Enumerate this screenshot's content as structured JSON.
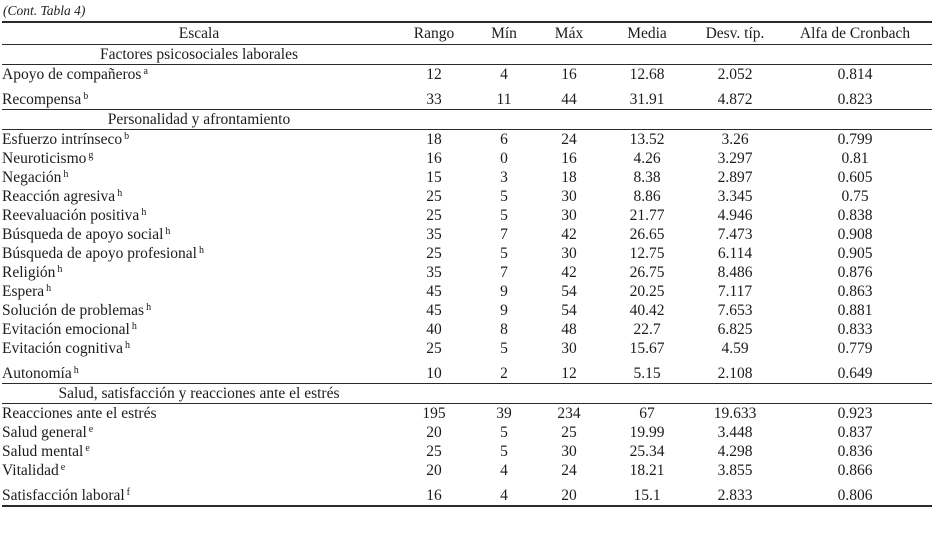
{
  "page": {
    "continuation_note": "(Cont. Tabla 4)"
  },
  "table": {
    "columns": [
      "Escala",
      "Rango",
      "Mín",
      "Máx",
      "Media",
      "Desv. típ.",
      "Alfa de Cronbach"
    ],
    "sections": [
      {
        "title": "Factores psicosociales laborales",
        "rows": [
          {
            "label": "Apoyo de compañeros",
            "sup": "a",
            "values": [
              "12",
              "4",
              "16",
              "12.68",
              "2.052",
              "0.814"
            ]
          },
          {
            "label": "Recompensa",
            "sup": "b",
            "values": [
              "33",
              "11",
              "44",
              "31.91",
              "4.872",
              "0.823"
            ]
          }
        ]
      },
      {
        "title": "Personalidad y afrontamiento",
        "rows": [
          {
            "label": "Esfuerzo intrínseco",
            "sup": "b",
            "values": [
              "18",
              "6",
              "24",
              "13.52",
              "3.26",
              "0.799"
            ]
          },
          {
            "label": "Neuroticismo",
            "sup": "g",
            "values": [
              "16",
              "0",
              "16",
              "4.26",
              "3.297",
              "0.81"
            ]
          },
          {
            "label": "Negación",
            "sup": "h",
            "values": [
              "15",
              "3",
              "18",
              "8.38",
              "2.897",
              "0.605"
            ]
          },
          {
            "label": "Reacción agresiva",
            "sup": "h",
            "values": [
              "25",
              "5",
              "30",
              "8.86",
              "3.345",
              "0.75"
            ]
          },
          {
            "label": "Reevaluación positiva",
            "sup": "h",
            "values": [
              "25",
              "5",
              "30",
              "21.77",
              "4.946",
              "0.838"
            ]
          },
          {
            "label": "Búsqueda de apoyo social",
            "sup": "h",
            "values": [
              "35",
              "7",
              "42",
              "26.65",
              "7.473",
              "0.908"
            ]
          },
          {
            "label": "Búsqueda de apoyo profesional",
            "sup": "h",
            "values": [
              "25",
              "5",
              "30",
              "12.75",
              "6.114",
              "0.905"
            ]
          },
          {
            "label": "Religión",
            "sup": "h",
            "values": [
              "35",
              "7",
              "42",
              "26.75",
              "8.486",
              "0.876"
            ]
          },
          {
            "label": "Espera",
            "sup": "h",
            "values": [
              "45",
              "9",
              "54",
              "20.25",
              "7.117",
              "0.863"
            ]
          },
          {
            "label": "Solución de problemas",
            "sup": "h",
            "values": [
              "45",
              "9",
              "54",
              "40.42",
              "7.653",
              "0.881"
            ]
          },
          {
            "label": "Evitación emocional",
            "sup": "h",
            "values": [
              "40",
              "8",
              "48",
              "22.7",
              "6.825",
              "0.833"
            ]
          },
          {
            "label": "Evitación cognitiva",
            "sup": "h",
            "values": [
              "25",
              "5",
              "30",
              "15.67",
              "4.59",
              "0.779"
            ]
          },
          {
            "label": "Autonomía",
            "sup": "h",
            "values": [
              "10",
              "2",
              "12",
              "5.15",
              "2.108",
              "0.649"
            ]
          }
        ]
      },
      {
        "title": "Salud, satisfacción y reacciones ante el estrés",
        "rows": [
          {
            "label": "Reacciones ante el estrés",
            "sup": "",
            "values": [
              "195",
              "39",
              "234",
              "67",
              "19.633",
              "0.923"
            ]
          },
          {
            "label": "Salud general",
            "sup": "e",
            "values": [
              "20",
              "5",
              "25",
              "19.99",
              "3.448",
              "0.837"
            ]
          },
          {
            "label": "Salud mental",
            "sup": "e",
            "values": [
              "25",
              "5",
              "30",
              "25.34",
              "4.298",
              "0.836"
            ]
          },
          {
            "label": "Vitalidad",
            "sup": "e",
            "values": [
              "20",
              "4",
              "24",
              "18.21",
              "3.855",
              "0.866"
            ]
          },
          {
            "label": "Satisfacción laboral",
            "sup": "f",
            "values": [
              "16",
              "4",
              "20",
              "15.1",
              "2.833",
              "0.806"
            ]
          }
        ]
      }
    ]
  }
}
